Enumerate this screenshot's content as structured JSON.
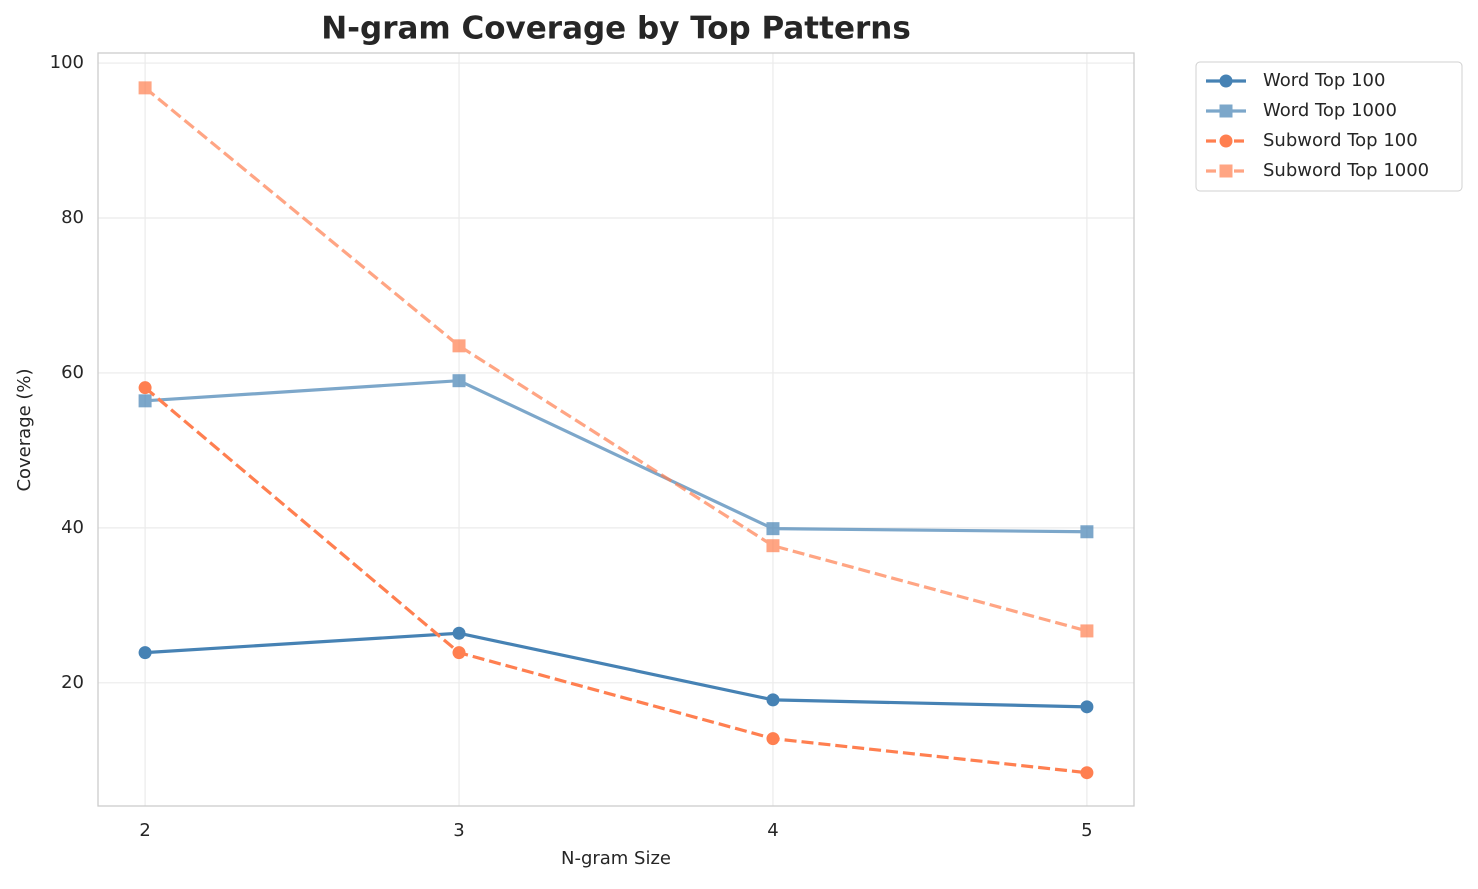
{
  "chart_data": {
    "type": "line",
    "title": "N-gram Coverage by Top Patterns",
    "xlabel": "N-gram Size",
    "ylabel": "Coverage (%)",
    "x": [
      2,
      3,
      4,
      5
    ],
    "series": [
      {
        "name": "Word Top 100",
        "color": "#4682b4",
        "marker": "circle",
        "linestyle": "solid",
        "opacity": 1,
        "values": [
          23.9,
          26.4,
          17.8,
          16.9
        ]
      },
      {
        "name": "Word Top 1000",
        "color": "#4682b4",
        "marker": "square",
        "linestyle": "solid",
        "opacity": 0.7,
        "values": [
          56.4,
          59.0,
          39.9,
          39.5
        ]
      },
      {
        "name": "Subword Top 100",
        "color": "#ff7f50",
        "marker": "circle",
        "linestyle": "dashed",
        "opacity": 1,
        "values": [
          58.1,
          23.9,
          12.8,
          8.4
        ]
      },
      {
        "name": "Subword Top 1000",
        "color": "#ff7f50",
        "marker": "square",
        "linestyle": "dashed",
        "opacity": 0.7,
        "values": [
          96.8,
          63.5,
          37.7,
          26.7
        ]
      }
    ],
    "xlim": [
      1.85,
      5.15
    ],
    "xticks": [
      2,
      3,
      4,
      5
    ],
    "ylim": [
      4.1,
      101.3
    ],
    "yticks": [
      20,
      40,
      60,
      80,
      100
    ],
    "grid": true,
    "legend": "outside-upper-right"
  }
}
